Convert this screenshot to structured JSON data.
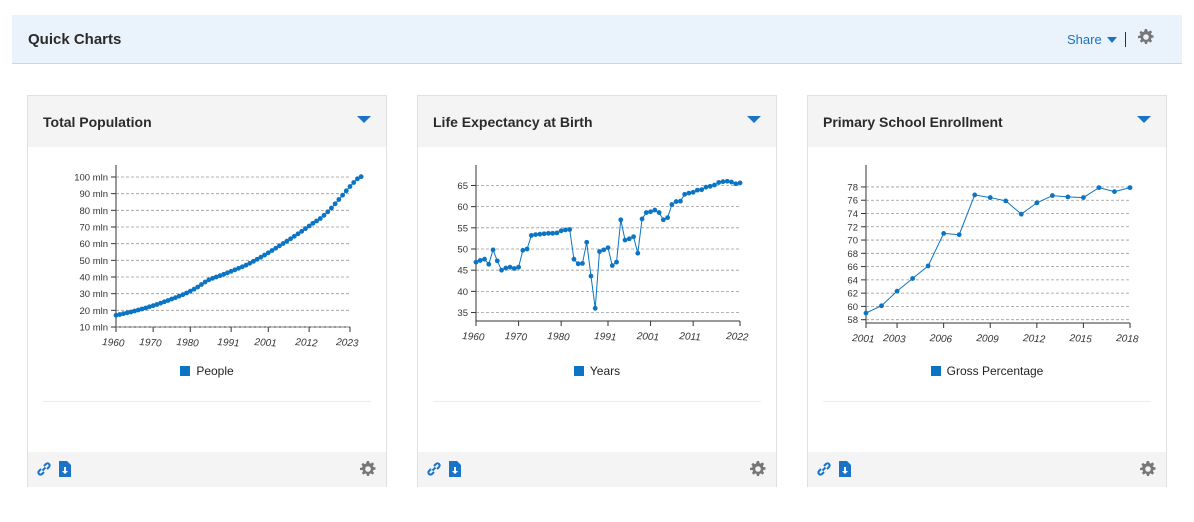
{
  "header": {
    "title": "Quick Charts",
    "share_label": "Share"
  },
  "colors": {
    "accent": "#1a73c6",
    "series": "#0b74c4",
    "header_bg": "#eaf2fb",
    "card_head_bg": "#f4f4f4"
  },
  "icons": {
    "share_caret": "chevron-down-icon",
    "settings": "gear-icon",
    "card_menu": "chevron-down-icon",
    "link": "link-icon",
    "download": "download-icon"
  },
  "cards": [
    {
      "title": "Total Population"
    },
    {
      "title": "Life Expectancy at Birth"
    },
    {
      "title": "Primary School Enrollment"
    }
  ],
  "chart_data": [
    {
      "type": "line",
      "title": "Total Population",
      "series": [
        {
          "name": "People",
          "values": [
            17.0,
            17.5,
            18.0,
            18.5,
            19.0,
            19.6,
            20.2,
            20.8,
            21.4,
            22.1,
            22.8,
            23.5,
            24.3,
            25.1,
            25.9,
            26.8,
            27.6,
            28.5,
            29.4,
            30.4,
            31.5,
            32.7,
            34.0,
            35.5,
            37.0,
            38.3,
            39.2,
            40.0,
            40.8,
            41.6,
            42.5,
            43.4,
            44.3,
            45.2,
            46.1,
            47.1,
            48.2,
            49.4,
            50.6,
            51.9,
            53.2,
            54.5,
            55.9,
            57.3,
            58.7,
            60.1,
            61.5,
            62.9,
            64.4,
            65.9,
            67.4,
            69.0,
            70.6,
            72.2,
            73.6,
            75.1,
            77.0,
            79.1,
            81.4,
            83.9,
            86.5,
            89.1,
            91.7,
            94.3,
            96.7,
            98.9,
            100.2
          ]
        }
      ],
      "x": [
        1960,
        1961,
        1962,
        1963,
        1964,
        1965,
        1966,
        1967,
        1968,
        1969,
        1970,
        1971,
        1972,
        1973,
        1974,
        1975,
        1976,
        1977,
        1978,
        1979,
        1980,
        1981,
        1982,
        1983,
        1984,
        1985,
        1986,
        1987,
        1988,
        1989,
        1990,
        1991,
        1992,
        1993,
        1994,
        1995,
        1996,
        1997,
        1998,
        1999,
        2000,
        2001,
        2002,
        2003,
        2004,
        2005,
        2006,
        2007,
        2008,
        2009,
        2010,
        2011,
        2012,
        2013,
        2014,
        2015,
        2016,
        2017,
        2018,
        2019,
        2020,
        2021,
        2022,
        2023,
        2024,
        2025,
        2026
      ],
      "xticks": [
        "1960",
        "1970",
        "1980",
        "1991",
        "2001",
        "2012",
        "2023"
      ],
      "yticks": [
        "10 mln",
        "20 mln",
        "30 mln",
        "40 mln",
        "50 mln",
        "60 mln",
        "70 mln",
        "80 mln",
        "90 mln",
        "100 mln"
      ],
      "ylim": [
        10,
        100
      ],
      "xlim": [
        1960,
        2023
      ],
      "grid": true,
      "legend": "bottom"
    },
    {
      "type": "line",
      "title": "Life Expectancy at Birth",
      "series": [
        {
          "name": "Years",
          "values": [
            46.9,
            47.3,
            47.6,
            46.4,
            49.8,
            47.2,
            45.0,
            45.5,
            45.7,
            45.4,
            45.7,
            49.7,
            50.0,
            53.2,
            53.4,
            53.5,
            53.6,
            53.7,
            53.7,
            53.8,
            54.3,
            54.5,
            54.6,
            47.6,
            46.5,
            46.6,
            51.6,
            43.6,
            36.0,
            49.4,
            49.8,
            50.3,
            46.1,
            46.9,
            56.9,
            52.1,
            52.4,
            52.9,
            49.0,
            57.1,
            58.6,
            58.8,
            59.2,
            58.6,
            56.9,
            57.4,
            60.5,
            61.2,
            61.3,
            62.9,
            63.2,
            63.4,
            63.9,
            64.0,
            64.6,
            64.8,
            65.1,
            65.7,
            65.9,
            66.0,
            65.8,
            65.4,
            65.6
          ]
        }
      ],
      "x": [
        1960,
        1961,
        1962,
        1963,
        1964,
        1965,
        1966,
        1967,
        1968,
        1969,
        1970,
        1971,
        1972,
        1973,
        1974,
        1975,
        1976,
        1977,
        1978,
        1979,
        1980,
        1981,
        1982,
        1983,
        1984,
        1985,
        1986,
        1987,
        1988,
        1989,
        1990,
        1991,
        1992,
        1993,
        1994,
        1995,
        1996,
        1997,
        1998,
        1999,
        2000,
        2001,
        2002,
        2003,
        2004,
        2005,
        2006,
        2007,
        2008,
        2009,
        2010,
        2011,
        2012,
        2013,
        2014,
        2015,
        2016,
        2017,
        2018,
        2019,
        2020,
        2021,
        2022
      ],
      "xticks": [
        "1960",
        "1970",
        "1980",
        "1991",
        "2001",
        "2011",
        "2022"
      ],
      "yticks": [
        "35",
        "40",
        "45",
        "50",
        "55",
        "60",
        "65"
      ],
      "ylim": [
        33,
        67
      ],
      "xlim": [
        1960,
        2022
      ],
      "grid": true,
      "legend": "bottom"
    },
    {
      "type": "line",
      "title": "Primary School Enrollment",
      "series": [
        {
          "name": "Gross Percentage",
          "values": [
            59.0,
            60.1,
            62.3,
            64.2,
            66.1,
            71.0,
            70.8,
            76.8,
            76.4,
            75.9,
            73.9,
            75.6,
            76.7,
            76.5,
            76.4,
            77.9,
            77.3,
            77.9
          ]
        }
      ],
      "x": [
        2001,
        2002,
        2003,
        2004,
        2005,
        2006,
        2007,
        2008,
        2009,
        2010,
        2011,
        2012,
        2013,
        2014,
        2015,
        2016,
        2017,
        2018
      ],
      "xticks": [
        "2001",
        "2003",
        "2006",
        "2009",
        "2012",
        "2015",
        "2018"
      ],
      "yticks": [
        "58",
        "60",
        "62",
        "64",
        "66",
        "68",
        "70",
        "72",
        "74",
        "76",
        "78"
      ],
      "ylim": [
        57.5,
        79.5
      ],
      "xlim": [
        2001,
        2018
      ],
      "grid": true,
      "legend": "bottom"
    }
  ]
}
